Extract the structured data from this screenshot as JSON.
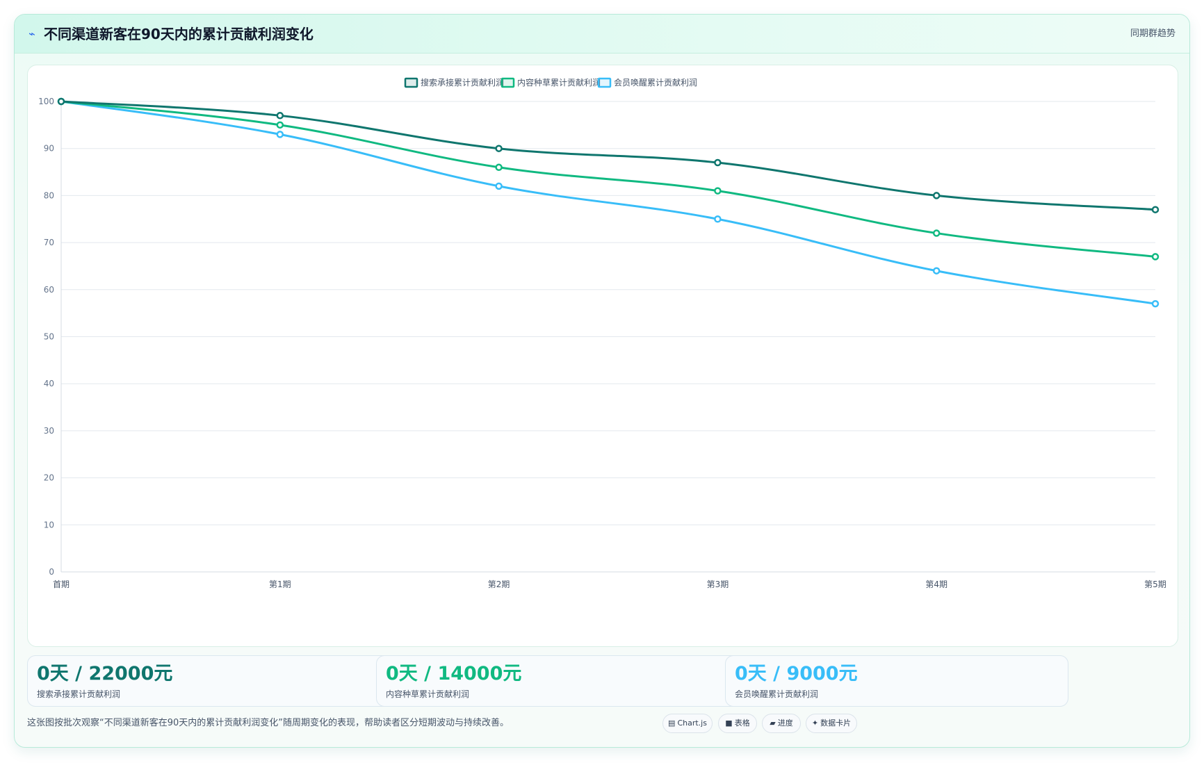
{
  "header": {
    "icon": "trend-icon",
    "icon_glyph": "⌁",
    "title": "不同渠道新客在90天内的累计贡献利润变化",
    "badge": "同期群趋势"
  },
  "chart_data": {
    "type": "line",
    "title": "",
    "xlabel": "",
    "ylabel": "",
    "categories": [
      "首期",
      "第1期",
      "第2期",
      "第3期",
      "第4期",
      "第5期"
    ],
    "ylim": [
      0,
      100
    ],
    "yticks": [
      0,
      10,
      20,
      30,
      40,
      50,
      60,
      70,
      80,
      90,
      100
    ],
    "grid": true,
    "legend_position": "top-center",
    "series": [
      {
        "name": "搜索承接累计贡献利润",
        "color": "#0f766e",
        "values": [
          100,
          97,
          90,
          87,
          80,
          77
        ]
      },
      {
        "name": "内容种草累计贡献利润",
        "color": "#10b981",
        "values": [
          100,
          95,
          86,
          81,
          72,
          67
        ]
      },
      {
        "name": "会员唤醒累计贡献利润",
        "color": "#38bdf8",
        "values": [
          100,
          93,
          82,
          75,
          64,
          57
        ]
      }
    ]
  },
  "stats": [
    {
      "value": "0天 / 22000元",
      "label": "搜索承接累计贡献利润",
      "color": "#0f766e"
    },
    {
      "value": "0天 / 14000元",
      "label": "内容种草累计贡献利润",
      "color": "#10b981"
    },
    {
      "value": "0天 / 9000元",
      "label": "会员唤醒累计贡献利润",
      "color": "#38bdf8"
    }
  ],
  "footer": {
    "note": "这张图按批次观察“不同渠道新客在90天内的累计贡献利润变化”随周期变化的表现，帮助读者区分短期波动与持续改善。"
  },
  "tags": [
    {
      "icon": "chart-icon",
      "glyph": "▤",
      "label": "Chart.js"
    },
    {
      "icon": "table-icon",
      "glyph": "■",
      "label": "表格"
    },
    {
      "icon": "progress-icon",
      "glyph": "▰",
      "label": "进度"
    },
    {
      "icon": "sparkle-icon",
      "glyph": "✦",
      "label": "数据卡片"
    }
  ]
}
